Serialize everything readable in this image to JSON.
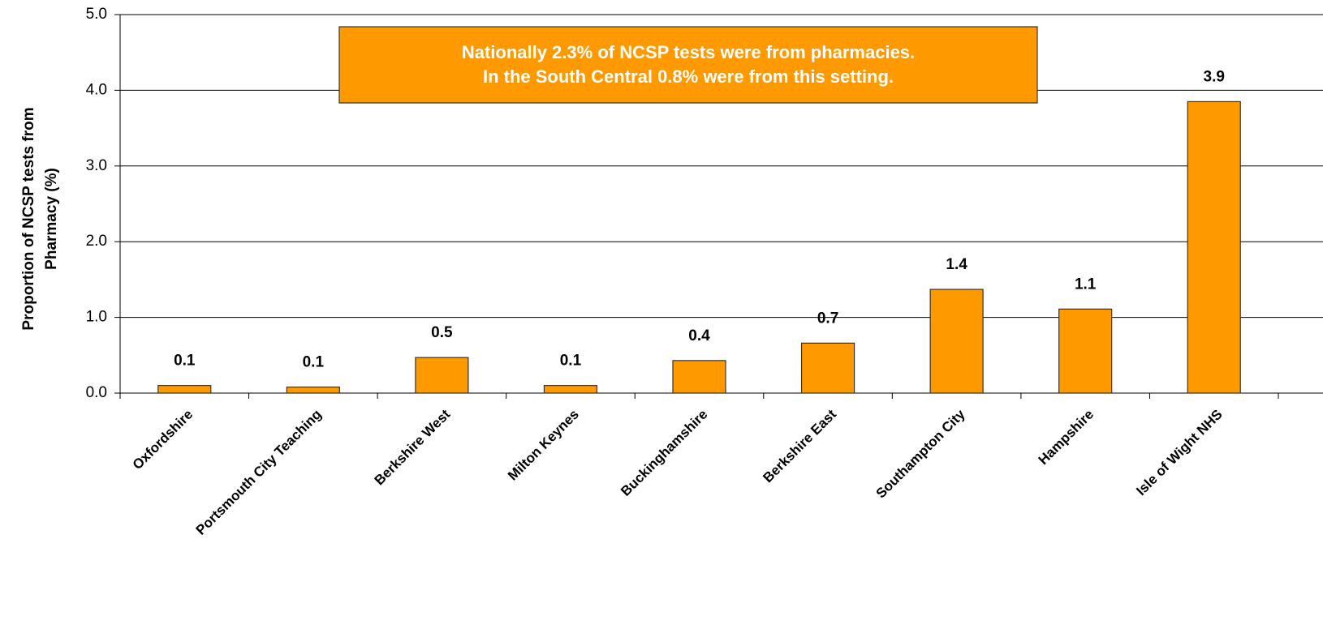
{
  "chart_data": {
    "type": "bar",
    "y_label": [
      "Proportion of NCSP tests from",
      "Pharmacy (%)"
    ],
    "annotation": [
      "Nationally  2.3% of NCSP tests were from  pharmacies.",
      "In the South Central 0.8% were from this setting."
    ],
    "categories": [
      "Oxfordshire",
      "Portsmouth City Teaching",
      "Berkshire West",
      "Milton Keynes",
      "Buckinghamshire",
      "Berkshire East",
      "Southampton City",
      "Hampshire",
      "Isle of Wight NHS"
    ],
    "values": [
      0.1,
      0.08,
      0.47,
      0.1,
      0.43,
      0.66,
      1.37,
      1.11,
      3.85
    ],
    "value_labels": [
      "0.1",
      "0.1",
      "0.5",
      "0.1",
      "0.4",
      "0.7",
      "1.4",
      "1.1",
      "3.9"
    ],
    "color": "#ff9900",
    "ylim": [
      0,
      5
    ],
    "yticks": [
      {
        "value": 0,
        "label": "0.0"
      },
      {
        "value": 1,
        "label": "1.0"
      },
      {
        "value": 2,
        "label": "2.0"
      },
      {
        "value": 3,
        "label": "3.0"
      },
      {
        "value": 4,
        "label": "4.0"
      },
      {
        "value": 5,
        "label": "5.0"
      }
    ],
    "grid": true
  }
}
